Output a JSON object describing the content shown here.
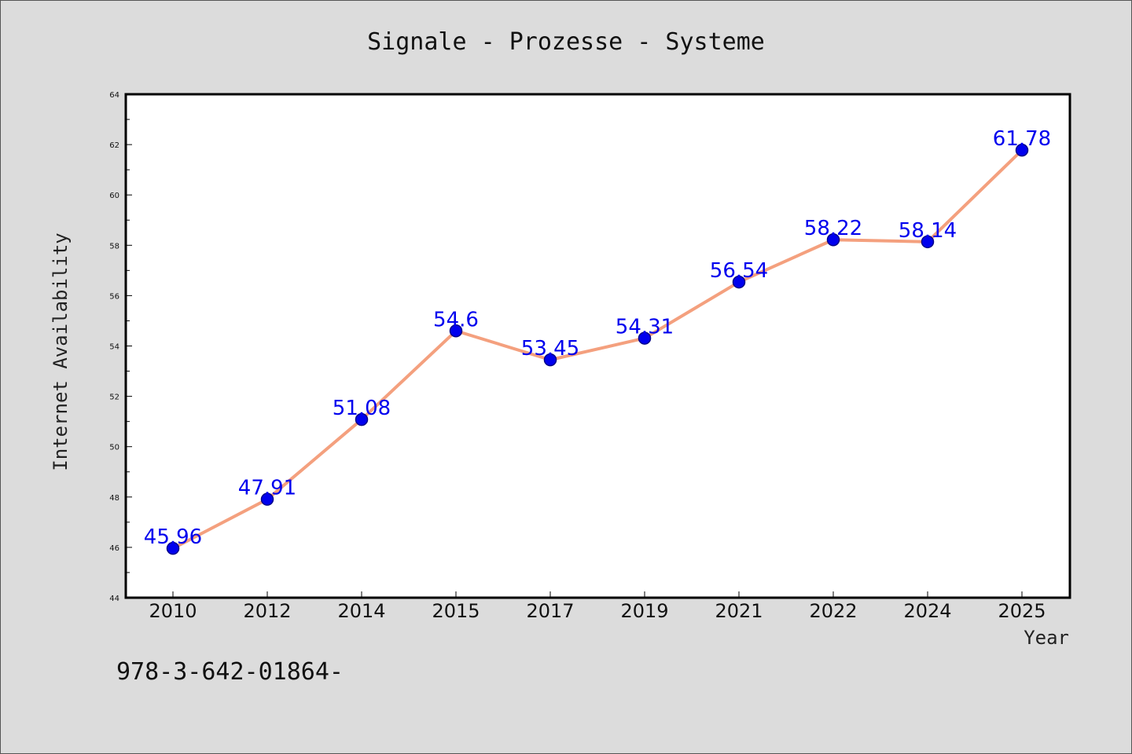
{
  "chart_data": {
    "type": "line",
    "title": "Signale - Prozesse - Systeme",
    "xlabel": "Year",
    "ylabel": "Internet Availability",
    "categories": [
      "2010",
      "2012",
      "2014",
      "2015",
      "2017",
      "2019",
      "2021",
      "2022",
      "2024",
      "2025"
    ],
    "series": [
      {
        "values": [
          45.96,
          47.91,
          51.08,
          54.6,
          53.45,
          54.31,
          56.54,
          58.22,
          58.14,
          61.78
        ],
        "labels": [
          "45.96",
          "47.91",
          "51.08",
          "54.6",
          "53.45",
          "54.31",
          "56.54",
          "58.22",
          "58.14",
          "61.78"
        ],
        "line_color": "#f4a07e",
        "marker_color": "#0000ee"
      }
    ],
    "ylim": [
      44,
      64
    ],
    "yticks": [
      "44",
      "46",
      "48",
      "50",
      "52",
      "54",
      "56",
      "58",
      "60",
      "62",
      "64"
    ],
    "grid": false,
    "legend": "none"
  },
  "footer": {
    "text": "978-3-642-01864-"
  }
}
